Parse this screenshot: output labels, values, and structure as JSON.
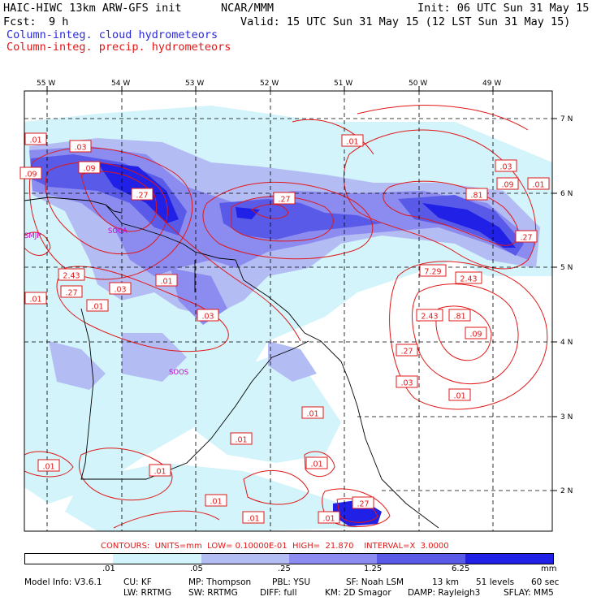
{
  "header": {
    "title_left": "HAIC-HIWC 13km ARW-GFS init",
    "title_mid": "NCAR/MMM",
    "init": "Init: 06 UTC Sun 31 May 15",
    "fcst_label": "Fcst:",
    "fcst_value": "9 h",
    "valid": "Valid: 15 UTC Sun 31 May 15 (12 LST Sun 31 May 15)",
    "field1": "Column-integ. cloud hydrometeors",
    "field2": "Column-integ. precip. hydrometeors"
  },
  "axes": {
    "longitudes": [
      "55 W",
      "54 W",
      "53 W",
      "52 W",
      "51 W",
      "50 W",
      "49 W"
    ],
    "latitudes": [
      "7 N",
      "6 N",
      "5 N",
      "4 N",
      "3 N",
      "2 N"
    ]
  },
  "stations": [
    "SMJP",
    "SOCA",
    "SOOS"
  ],
  "contour_labels": [
    ".01",
    ".03",
    ".09",
    ".27",
    ".81",
    "2.43",
    "7.29"
  ],
  "contours_line": {
    "label": "CONTOURS:",
    "units": "UNITS=mm",
    "low": "LOW= 0.10000E-01",
    "high": "HIGH=  21.870",
    "interval": "INTERVAL=X  3.0000"
  },
  "colorbar": {
    "ticks": [
      ".01",
      ".05",
      ".25",
      "1.25",
      "6.25"
    ],
    "unit": "mm",
    "colors": [
      "#ffffff",
      "#d2f4fa",
      "#b4bcf4",
      "#8c8cf0",
      "#5a5ae8",
      "#2020e6"
    ]
  },
  "model_info": {
    "line1": [
      "Model Info: V3.6.1",
      "CU: KF",
      "MP: Thompson",
      "PBL: YSU",
      "SF: Noah LSM",
      "13 km",
      "51 levels",
      "60 sec"
    ],
    "line2": [
      "LW: RRTMG",
      "SW: RRTMG",
      "DIFF: full",
      "KM: 2D Smagor",
      "DAMP: Rayleigh3",
      "SFLAY: MM5"
    ]
  }
}
